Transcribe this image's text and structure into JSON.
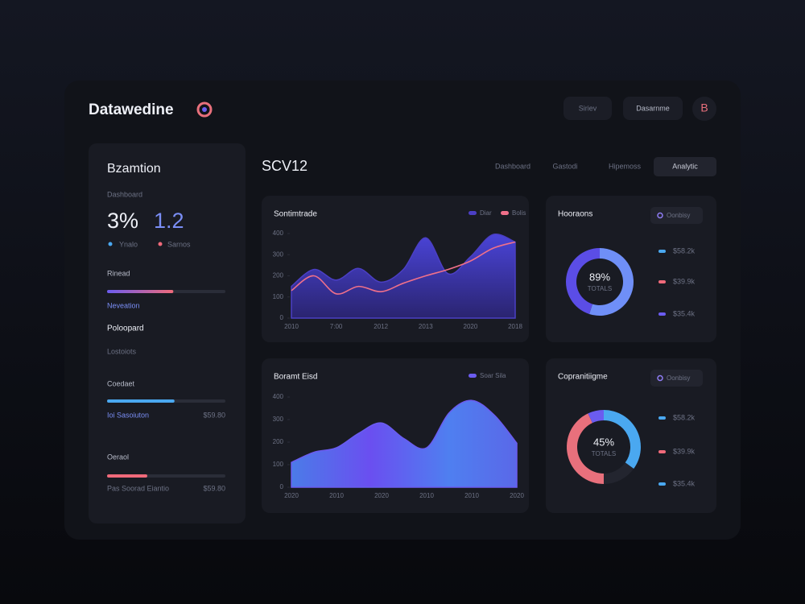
{
  "header": {
    "logo": "Datawedine",
    "buttons": [
      "Siriev",
      "Dasarnme"
    ],
    "avatar": "B"
  },
  "sidebar": {
    "title": "Bzamtion",
    "subtitle": "Dashboard",
    "stats": [
      {
        "value": "3%",
        "note": "Ynalo"
      },
      {
        "value": "1.2",
        "note": "Sarnos"
      }
    ],
    "heading": "Poloopard",
    "caption": "Lostoiots",
    "sections": [
      {
        "label": "Rinead",
        "progress": 56,
        "note": "Neveation"
      },
      {
        "label": "Coedaet",
        "progress": 57,
        "note": "Ioi Sasoiuton",
        "amount": "$59.80"
      },
      {
        "label": "Oeraol",
        "progress": 34,
        "note": "Pas Soorad Eiantio",
        "amount": "$59.80"
      }
    ]
  },
  "main": {
    "title": "SCV12",
    "tabs": [
      "Dashboard",
      "Gastodi",
      "Hipemoss",
      "Analytic"
    ],
    "active_tab": 3
  },
  "chart_data": [
    {
      "type": "area",
      "title": "Sontimtrade",
      "categories": [
        "2010",
        null,
        "7:00",
        null,
        "2012",
        null,
        "2013",
        null,
        "2020",
        null,
        "2018"
      ],
      "series": [
        {
          "name": "Diar",
          "kind": "area",
          "color": "#4b3fc4",
          "values": [
            150,
            230,
            180,
            235,
            170,
            230,
            380,
            210,
            290,
            395,
            360
          ]
        },
        {
          "name": "Bolis",
          "kind": "line",
          "color": "#f0708a",
          "values": [
            130,
            200,
            115,
            150,
            125,
            165,
            200,
            230,
            270,
            330,
            360
          ]
        }
      ],
      "ylim": [
        0,
        400
      ],
      "yticks": [
        0,
        100,
        200,
        300,
        400
      ]
    },
    {
      "type": "area",
      "title": "Boramt Eisd",
      "categories": [
        "2020",
        null,
        "2010",
        null,
        "2020",
        null,
        "2010",
        null,
        "2010",
        null,
        "2020"
      ],
      "series": [
        {
          "name": "Soar Sila",
          "kind": "area",
          "color": "#6b5cf0",
          "values": [
            110,
            155,
            175,
            240,
            285,
            215,
            175,
            330,
            385,
            320,
            195
          ]
        }
      ],
      "ylim": [
        0,
        400
      ],
      "yticks": [
        0,
        100,
        200,
        300,
        400
      ]
    },
    {
      "type": "donut",
      "title": "Hooraons",
      "button": "Oonbisy",
      "center_label": "89%",
      "center_sub": "TOTALS",
      "values": [
        55,
        45
      ],
      "colors": [
        "#6f8ff7",
        "#5b4de6"
      ],
      "legend": [
        {
          "label": "$58.2k",
          "color": "#4aa8f0"
        },
        {
          "label": "$39.9k",
          "color": "#f06a7a"
        },
        {
          "label": "$35.4k",
          "color": "#6b5cf0"
        }
      ]
    },
    {
      "type": "donut",
      "title": "Copranitiigme",
      "button": "Oonbisy",
      "center_label": "45%",
      "center_sub": "TOTALS",
      "values": [
        35,
        15,
        43,
        7
      ],
      "colors": [
        "#4aa8f0",
        "#23252f",
        "#e8707c",
        "#6b5cf0"
      ],
      "legend": [
        {
          "label": "$58.2k",
          "color": "#4aa8f0"
        },
        {
          "label": "$39.9k",
          "color": "#f06a7a"
        },
        {
          "label": "$35.4k",
          "color": "#4aa8f0"
        }
      ]
    }
  ]
}
